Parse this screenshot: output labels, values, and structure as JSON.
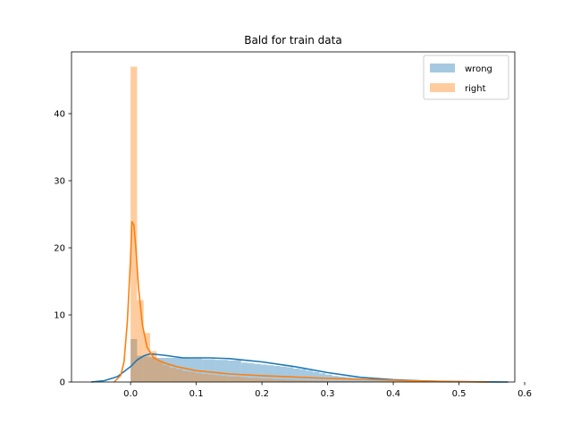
{
  "chart_data": {
    "type": "histogram",
    "title": "Bald for train data",
    "xlabel": "",
    "ylabel": "",
    "xlim": [
      -0.09,
      0.585
    ],
    "ylim": [
      0,
      49.2
    ],
    "xticks": [
      0.0,
      0.1,
      0.2,
      0.3,
      0.4,
      0.5,
      0.6
    ],
    "xtick_labels": [
      "0.0",
      "0.1",
      "0.2",
      "0.3",
      "0.4",
      "0.5",
      "0.6"
    ],
    "yticks": [
      0,
      10,
      20,
      30,
      40
    ],
    "ytick_labels": [
      "0",
      "10",
      "20",
      "30",
      "40"
    ],
    "legend_position": "top-right",
    "grid": false,
    "series": [
      {
        "name": "wrong",
        "color": "#1f77b4",
        "bins_from": 0.0,
        "bins_to": 0.5,
        "bin_width": 0.0099,
        "bin_heights": [
          6.4,
          3.9,
          3.8,
          3.7,
          3.6,
          3.6,
          3.6,
          3.6,
          3.6,
          3.5,
          3.5,
          3.4,
          3.4,
          3.3,
          3.3,
          3.2,
          3.2,
          2.9,
          2.8,
          2.7,
          2.6,
          2.5,
          2.4,
          2.3,
          2.2,
          2.0,
          1.9,
          1.7,
          1.5,
          1.3,
          1.1,
          0.9,
          0.8,
          0.7,
          0.6,
          0.5,
          0.4,
          0.35,
          0.3,
          0.25,
          0.2,
          0.18,
          0.15,
          0.12,
          0.1,
          0.08,
          0.07,
          0.05,
          0.04,
          0.03,
          0.02
        ],
        "kde_x": [
          -0.06,
          -0.04,
          -0.02,
          0.0,
          0.01,
          0.02,
          0.03,
          0.05,
          0.08,
          0.1,
          0.12,
          0.15,
          0.17,
          0.2,
          0.25,
          0.3,
          0.35,
          0.4,
          0.45,
          0.5,
          0.55,
          0.575
        ],
        "kde_y": [
          0.0,
          0.2,
          0.8,
          2.3,
          3.3,
          3.9,
          4.2,
          4.0,
          3.6,
          3.6,
          3.6,
          3.5,
          3.3,
          3.0,
          2.3,
          1.4,
          0.7,
          0.35,
          0.15,
          0.06,
          0.01,
          0.0
        ]
      },
      {
        "name": "right",
        "color": "#ff7f0e",
        "bins_from": 0.0,
        "bins_to": 0.5,
        "bin_width": 0.0099,
        "bin_heights": [
          47.0,
          12.2,
          7.3,
          4.6,
          3.2,
          2.5,
          2.1,
          1.9,
          1.6,
          1.5,
          1.3,
          1.2,
          1.1,
          1.0,
          0.9,
          0.8,
          0.8,
          0.7,
          0.6,
          0.6,
          0.5,
          0.5,
          0.4,
          0.4,
          0.35,
          0.3,
          0.3,
          0.25,
          0.2,
          0.2,
          0.18,
          0.16,
          0.14,
          0.12,
          0.1,
          0.09,
          0.08,
          0.07,
          0.06,
          0.05,
          0.05,
          0.04,
          0.04,
          0.03,
          0.03,
          0.02,
          0.02,
          0.02,
          0.01,
          0.01,
          0.01
        ],
        "kde_x": [
          -0.025,
          -0.015,
          -0.01,
          -0.005,
          0.0,
          0.002,
          0.005,
          0.008,
          0.012,
          0.018,
          0.025,
          0.035,
          0.05,
          0.07,
          0.1,
          0.15,
          0.2,
          0.25,
          0.3,
          0.35,
          0.4,
          0.45,
          0.5,
          0.545
        ],
        "kde_y": [
          0.0,
          1.0,
          3.0,
          9.0,
          18.5,
          23.9,
          23.4,
          20.0,
          14.0,
          8.5,
          5.2,
          3.6,
          2.9,
          2.3,
          1.7,
          1.2,
          0.95,
          0.75,
          0.55,
          0.4,
          0.25,
          0.12,
          0.04,
          0.0
        ]
      }
    ]
  }
}
